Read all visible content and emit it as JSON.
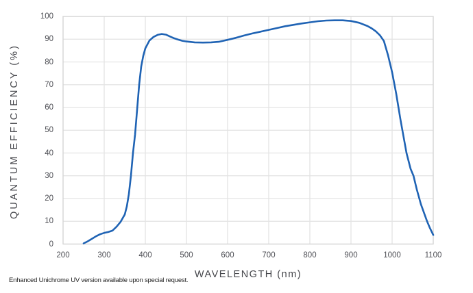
{
  "chart_data": {
    "type": "line",
    "title": "",
    "xlabel": "WAVELENGTH (nm)",
    "ylabel": "QUANTUM EFFICIENCY (%)",
    "xlim": [
      200,
      1100
    ],
    "ylim": [
      0,
      100
    ],
    "x_ticks": [
      200,
      300,
      400,
      500,
      600,
      700,
      800,
      900,
      1000,
      1100
    ],
    "y_ticks": [
      0,
      10,
      20,
      30,
      40,
      50,
      60,
      70,
      80,
      90,
      100
    ],
    "grid": true,
    "legend": false,
    "series": [
      {
        "name": "Quantum efficiency",
        "color": "#1f63b4",
        "points": [
          [
            250,
            0.3
          ],
          [
            260,
            1.2
          ],
          [
            270,
            2.3
          ],
          [
            280,
            3.4
          ],
          [
            290,
            4.3
          ],
          [
            300,
            4.9
          ],
          [
            310,
            5.3
          ],
          [
            320,
            5.9
          ],
          [
            330,
            7.6
          ],
          [
            340,
            9.8
          ],
          [
            350,
            13
          ],
          [
            355,
            16.5
          ],
          [
            360,
            22
          ],
          [
            365,
            30
          ],
          [
            370,
            40
          ],
          [
            375,
            48
          ],
          [
            380,
            59
          ],
          [
            385,
            70
          ],
          [
            390,
            78
          ],
          [
            395,
            82.7
          ],
          [
            400,
            86
          ],
          [
            410,
            89.4
          ],
          [
            420,
            91
          ],
          [
            430,
            91.9
          ],
          [
            440,
            92.3
          ],
          [
            450,
            92
          ],
          [
            460,
            91.2
          ],
          [
            470,
            90.4
          ],
          [
            480,
            89.8
          ],
          [
            490,
            89.3
          ],
          [
            500,
            89
          ],
          [
            520,
            88.6
          ],
          [
            540,
            88.5
          ],
          [
            560,
            88.6
          ],
          [
            580,
            88.9
          ],
          [
            600,
            89.7
          ],
          [
            620,
            90.6
          ],
          [
            640,
            91.6
          ],
          [
            660,
            92.5
          ],
          [
            680,
            93.3
          ],
          [
            700,
            94.1
          ],
          [
            720,
            94.9
          ],
          [
            740,
            95.7
          ],
          [
            760,
            96.3
          ],
          [
            780,
            96.9
          ],
          [
            800,
            97.4
          ],
          [
            820,
            97.9
          ],
          [
            840,
            98.2
          ],
          [
            860,
            98.3
          ],
          [
            880,
            98.3
          ],
          [
            900,
            98
          ],
          [
            920,
            97.2
          ],
          [
            940,
            95.8
          ],
          [
            950,
            94.8
          ],
          [
            960,
            93.5
          ],
          [
            970,
            91.8
          ],
          [
            980,
            89.2
          ],
          [
            990,
            83
          ],
          [
            1000,
            75.5
          ],
          [
            1010,
            66
          ],
          [
            1020,
            55
          ],
          [
            1025,
            50
          ],
          [
            1035,
            40
          ],
          [
            1045,
            33
          ],
          [
            1052,
            30
          ],
          [
            1060,
            24
          ],
          [
            1070,
            17.5
          ],
          [
            1085,
            10
          ],
          [
            1092,
            7
          ],
          [
            1100,
            4
          ]
        ]
      }
    ]
  },
  "footnote": "Enhanced Unichrome UV version available upon special request.",
  "colors": {
    "line": "#1f63b4",
    "grid": "#e3e3e3",
    "border": "#d4d4d4",
    "tick_text": "#4d4e54",
    "axis_title_text": "#45464b",
    "footnote_text": "#1c1c1c",
    "background": "#ffffff"
  }
}
